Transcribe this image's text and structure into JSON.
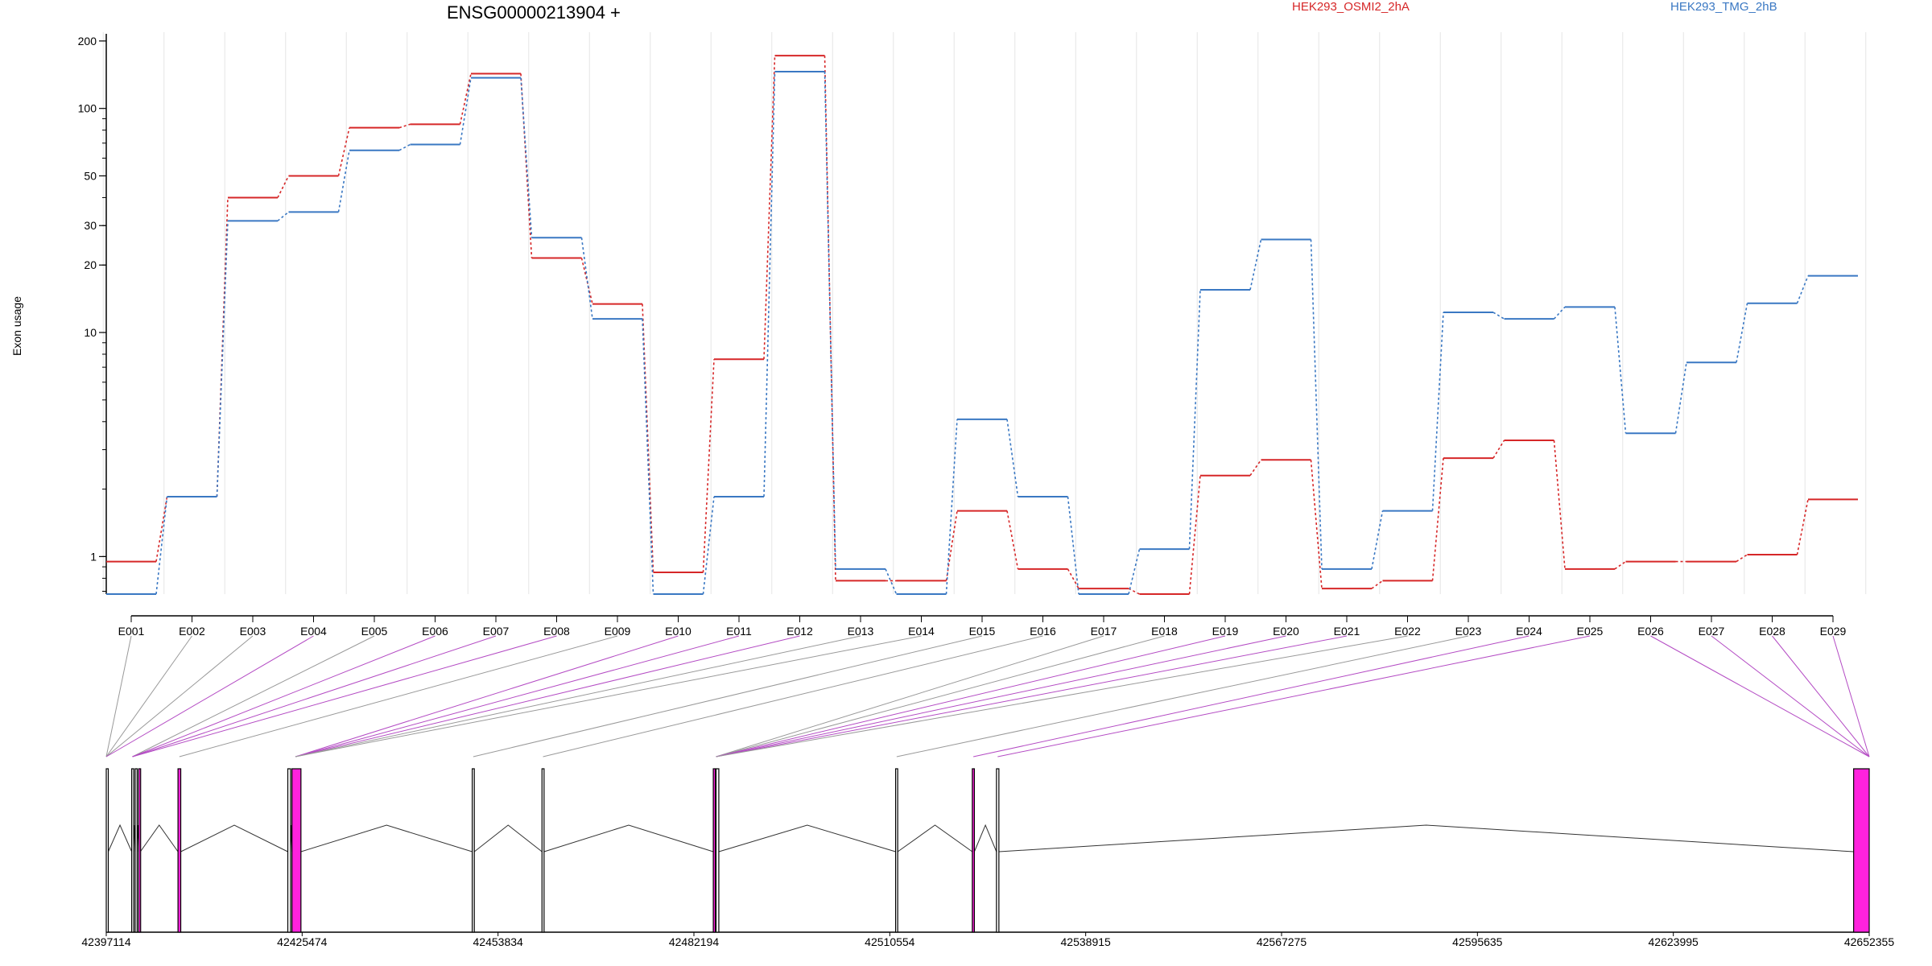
{
  "chart_data": {
    "type": "line",
    "title": "ENSG00000213904 +",
    "ylabel": "Exon usage",
    "ylim": [
      0.68,
      210
    ],
    "yscale": "log",
    "yticks": [
      1,
      10,
      20,
      30,
      50,
      100,
      200
    ],
    "ytick_labels": [
      "1",
      "10",
      "20",
      "30",
      "50",
      "100",
      "200"
    ],
    "categories": [
      "E001",
      "E002",
      "E003",
      "E004",
      "E005",
      "E006",
      "E007",
      "E008",
      "E009",
      "E010",
      "E011",
      "E012",
      "E013",
      "E014",
      "E015",
      "E016",
      "E017",
      "E018",
      "E019",
      "E020",
      "E021",
      "E022",
      "E023",
      "E024",
      "E025",
      "E026",
      "E027",
      "E028",
      "E029"
    ],
    "series": [
      {
        "name": "HEK293_OSMI2_2hA",
        "color": "#d62728",
        "values": [
          0.95,
          1.85,
          40,
          50,
          82,
          85,
          143,
          21.5,
          13.4,
          0.85,
          7.6,
          172,
          0.78,
          0.78,
          1.6,
          0.88,
          0.72,
          0.68,
          2.3,
          2.7,
          0.72,
          0.78,
          2.75,
          3.3,
          0.88,
          0.95,
          0.95,
          1.02,
          1.8
        ]
      },
      {
        "name": "HEK293_TMG_2hB",
        "color": "#3a78c3",
        "values": [
          0.68,
          1.85,
          31.5,
          34.5,
          65,
          69,
          137,
          26.5,
          11.5,
          0.68,
          1.85,
          146,
          0.88,
          0.68,
          4.1,
          1.85,
          0.68,
          1.08,
          15.5,
          26,
          0.88,
          1.6,
          12.3,
          11.5,
          13,
          3.55,
          7.35,
          13.5,
          17.9
        ]
      }
    ],
    "grid": true,
    "legend": "top-right",
    "gene_model": {
      "coord_labels": [
        "42397114",
        "42425474",
        "42453834",
        "42482194",
        "42510554",
        "42538915",
        "42567275",
        "42595635",
        "42623995",
        "42652355"
      ],
      "exons": [
        {
          "id": "E001",
          "start": 42397114,
          "end": 42397400,
          "highlighted": false
        },
        {
          "id": "E002",
          "start": 42400800,
          "end": 42401050,
          "highlighted": false
        },
        {
          "id": "E003",
          "start": 42401300,
          "end": 42401550,
          "highlighted": false
        },
        {
          "id": "E004",
          "start": 42401800,
          "end": 42402050,
          "highlighted": true
        },
        {
          "id": "E005",
          "start": 42407500,
          "end": 42407900,
          "highlighted": true
        },
        {
          "id": "E006",
          "start": 42423400,
          "end": 42423800,
          "highlighted": false
        },
        {
          "id": "E007",
          "start": 42424000,
          "end": 42425300,
          "highlighted": true
        },
        {
          "id": "E008",
          "start": 42450100,
          "end": 42450400,
          "highlighted": false
        },
        {
          "id": "E009",
          "start": 42460200,
          "end": 42460500,
          "highlighted": false
        },
        {
          "id": "E010",
          "start": 42485000,
          "end": 42485300,
          "highlighted": true
        },
        {
          "id": "E011",
          "start": 42485400,
          "end": 42485800,
          "highlighted": false
        },
        {
          "id": "E012",
          "start": 42511400,
          "end": 42511700,
          "highlighted": false
        },
        {
          "id": "E013",
          "start": 42522500,
          "end": 42522800,
          "highlighted": true
        },
        {
          "id": "E014",
          "start": 42526000,
          "end": 42526350,
          "highlighted": false
        },
        {
          "id": "E015",
          "start": 42650100,
          "end": 42652355,
          "highlighted": true
        }
      ]
    }
  },
  "legend": {
    "osmi": "HEK293_OSMI2_2hA",
    "tmg": "HEK293_TMG_2hB"
  }
}
